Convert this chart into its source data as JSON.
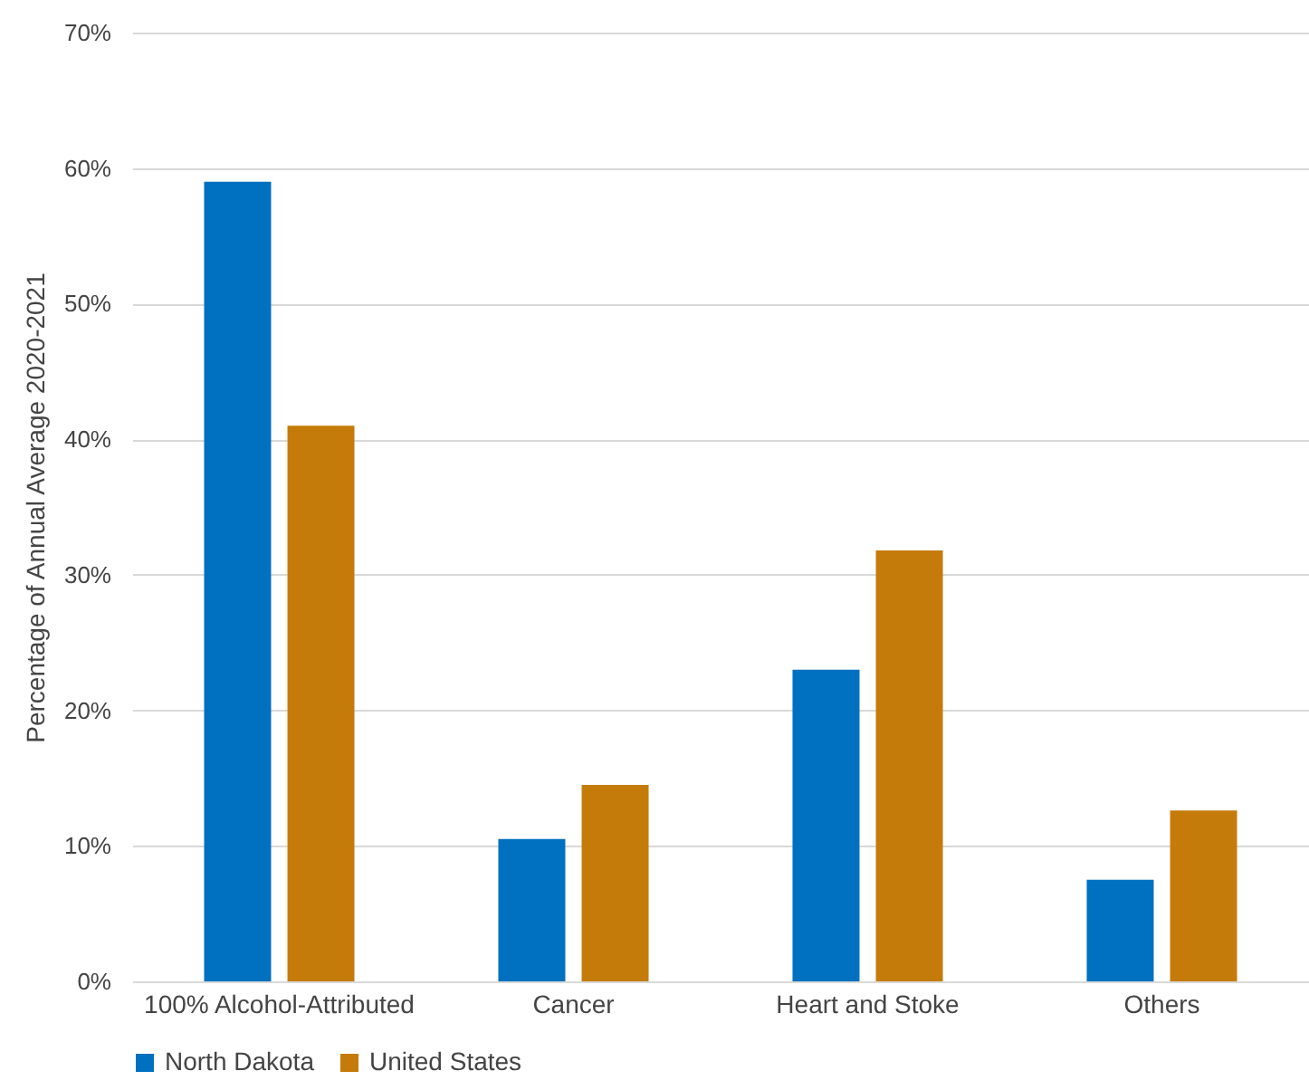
{
  "chart_data": {
    "type": "bar",
    "ylabel": "Percentage of Annual  Average 2020-2021",
    "categories": [
      "100% Alcohol-Attributed",
      "Cancer",
      "Heart and Stoke",
      "Others"
    ],
    "series": [
      {
        "name": "North Dakota",
        "color": "#0070c0",
        "values": [
          59,
          10.5,
          23,
          7.5
        ]
      },
      {
        "name": "United States",
        "color": "#c57b0a",
        "values": [
          41,
          14.5,
          31.8,
          12.6
        ]
      }
    ],
    "ylim": [
      0,
      70
    ],
    "yticks": [
      {
        "value": 0,
        "label": "0%"
      },
      {
        "value": 10,
        "label": "10%"
      },
      {
        "value": 20,
        "label": "20%"
      },
      {
        "value": 30,
        "label": "30%"
      },
      {
        "value": 40,
        "label": "40%"
      },
      {
        "value": 50,
        "label": "50%"
      },
      {
        "value": 60,
        "label": "60%"
      },
      {
        "value": 70,
        "label": "70%"
      }
    ],
    "grid": "y",
    "legend": "bottom"
  }
}
